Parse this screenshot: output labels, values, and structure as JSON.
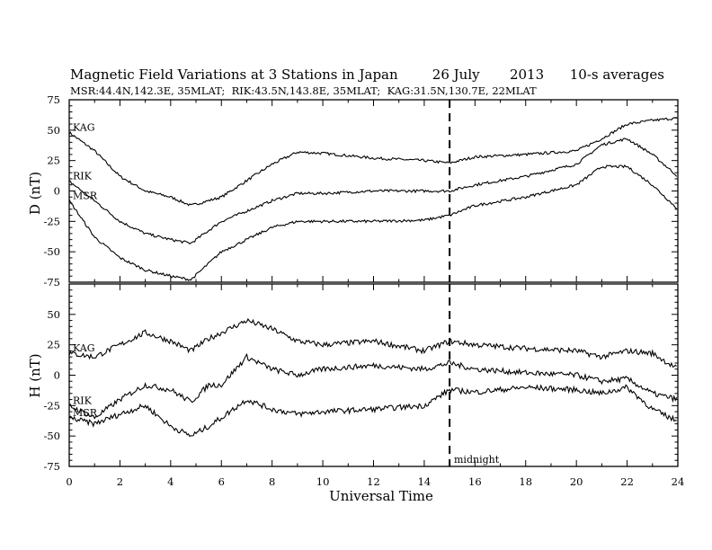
{
  "chart_data": [
    {
      "type": "line",
      "title": "Magnetic Field Variations at 3 Stations in Japan        26 July       2013      10-s averages",
      "subtitle": "MSR:44.4N,142.3E, 35MLAT;  RIK:43.5N,143.8E, 35MLAT;  KAG:31.5N,130.7E, 22MLAT",
      "xlabel": "Universal Time",
      "ylabel": "D (nT)",
      "xlim": [
        0,
        24
      ],
      "ylim": [
        -75,
        75
      ],
      "xticks": [
        "0",
        "2",
        "4",
        "6",
        "8",
        "10",
        "12",
        "14",
        "16",
        "18",
        "20",
        "22",
        "24"
      ],
      "yticks": [
        "75",
        "50",
        "25",
        "0",
        "-25",
        "-50",
        "-75"
      ],
      "annotation": {
        "x": 15,
        "text": "midnight"
      },
      "series": [
        {
          "name": "KAG",
          "x": [
            0,
            1,
            2,
            3,
            4,
            4.8,
            6,
            8,
            9,
            10,
            12,
            14,
            15,
            16,
            18,
            20,
            21,
            22,
            23,
            24
          ],
          "values": [
            48,
            33,
            12,
            0,
            -5,
            -12,
            -5,
            22,
            32,
            31,
            27,
            25,
            23,
            28,
            30,
            33,
            43,
            55,
            58,
            60
          ]
        },
        {
          "name": "RIK",
          "x": [
            0,
            1,
            2,
            3,
            4,
            4.8,
            6,
            8,
            9,
            10,
            12,
            14,
            15,
            16,
            18,
            20,
            21,
            22,
            23,
            24
          ],
          "values": [
            8,
            -8,
            -25,
            -35,
            -40,
            -43,
            -25,
            -8,
            -2,
            -2,
            0,
            0,
            0,
            5,
            12,
            22,
            38,
            43,
            30,
            12
          ]
        },
        {
          "name": "MSR",
          "x": [
            0,
            1,
            2,
            3,
            4,
            4.8,
            6,
            8,
            9,
            10,
            12,
            14,
            15,
            16,
            18,
            20,
            21,
            22,
            23,
            24
          ],
          "values": [
            -8,
            -38,
            -55,
            -65,
            -70,
            -73,
            -50,
            -30,
            -25,
            -25,
            -25,
            -24,
            -20,
            -12,
            -5,
            5,
            20,
            20,
            5,
            -15
          ]
        }
      ]
    },
    {
      "type": "line",
      "xlabel": "Universal Time",
      "ylabel": "H (nT)",
      "xlim": [
        0,
        24
      ],
      "ylim": [
        -75,
        75
      ],
      "xticks": [
        "0",
        "2",
        "4",
        "6",
        "8",
        "10",
        "12",
        "14",
        "16",
        "18",
        "20",
        "22",
        "24"
      ],
      "yticks": [
        "75",
        "50",
        "25",
        "0",
        "-25",
        "-50",
        "-75"
      ],
      "series": [
        {
          "name": "KAG",
          "x": [
            0,
            1,
            2,
            3,
            4,
            4.8,
            5.5,
            6,
            7,
            8,
            9,
            10,
            12,
            14,
            15,
            16,
            18,
            20,
            21,
            22,
            23,
            24
          ],
          "values": [
            18,
            15,
            25,
            35,
            28,
            20,
            30,
            35,
            45,
            38,
            28,
            25,
            28,
            20,
            28,
            25,
            22,
            20,
            15,
            20,
            18,
            5
          ]
        },
        {
          "name": "RIK",
          "x": [
            0,
            1,
            2,
            3,
            4,
            4.8,
            5.5,
            6,
            7,
            8,
            9,
            10,
            12,
            14,
            15,
            16,
            18,
            20,
            21,
            22,
            23,
            24
          ],
          "values": [
            -25,
            -35,
            -20,
            -8,
            -12,
            -22,
            -8,
            -8,
            15,
            5,
            0,
            5,
            8,
            5,
            10,
            5,
            2,
            0,
            -5,
            -3,
            -15,
            -20
          ]
        },
        {
          "name": "MSR",
          "x": [
            0,
            1,
            2,
            3,
            4,
            4.8,
            5.5,
            6,
            7,
            8,
            9,
            10,
            12,
            14,
            15,
            16,
            18,
            20,
            21,
            22,
            23,
            24
          ],
          "values": [
            -35,
            -40,
            -32,
            -25,
            -42,
            -50,
            -42,
            -35,
            -20,
            -28,
            -32,
            -30,
            -28,
            -25,
            -12,
            -14,
            -10,
            -12,
            -15,
            -10,
            -28,
            -38
          ]
        }
      ]
    }
  ]
}
